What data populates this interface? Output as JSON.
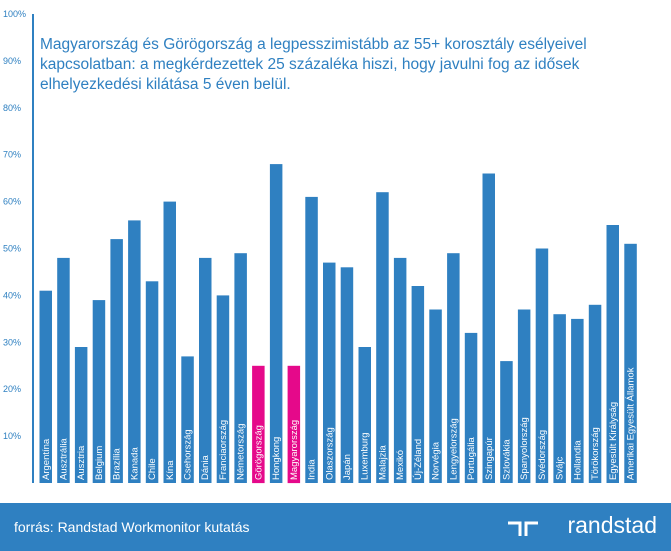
{
  "chart_data": {
    "type": "bar",
    "title": "Magyarország és Görögország a legpesszimistább az 55+ korosztály esélyeivel kapcsolatban: a megkérdezettek 25 százaléka hiszi, hogy javulni fog az idősek elhelyezkedési kilátása 5 éven belül.",
    "yticks": [
      "10%",
      "20%",
      "30%",
      "40%",
      "50%",
      "60%",
      "70%",
      "80%",
      "90%",
      "100%"
    ],
    "ylim": [
      0,
      100
    ],
    "grid": false,
    "categories": [
      "Argentína",
      "Ausztrália",
      "Ausztria",
      "Belgium",
      "Brazília",
      "Kanada",
      "Chile",
      "Kína",
      "Csehország",
      "Dánia",
      "Franciaország",
      "Németország",
      "Görögország",
      "Hongkong",
      "Magyarország",
      "India",
      "Olaszország",
      "Japán",
      "Luxemburg",
      "Malajzia",
      "Mexikó",
      "Új-Zéland",
      "Norvégia",
      "Lengyelország",
      "Portugália",
      "Szingapúr",
      "Szlovákia",
      "Spanyolország",
      "Svédország",
      "Svájc",
      "Hollandia",
      "Törökország",
      "Egyesült Királyság",
      "Amerikai Egyesült Államok"
    ],
    "values": [
      41,
      48,
      29,
      39,
      52,
      56,
      43,
      60,
      27,
      48,
      40,
      49,
      25,
      68,
      25,
      61,
      47,
      46,
      29,
      62,
      48,
      42,
      37,
      49,
      32,
      66,
      26,
      37,
      50,
      36,
      35,
      38,
      55,
      51
    ],
    "colors": {
      "default": "#2f80c1",
      "highlight": "#e5098a"
    },
    "highlighted": [
      "Görögország",
      "Magyarország"
    ]
  },
  "footer": {
    "source": "forrás: Randstad Workmonitor kutatás",
    "brand": "randstad"
  }
}
